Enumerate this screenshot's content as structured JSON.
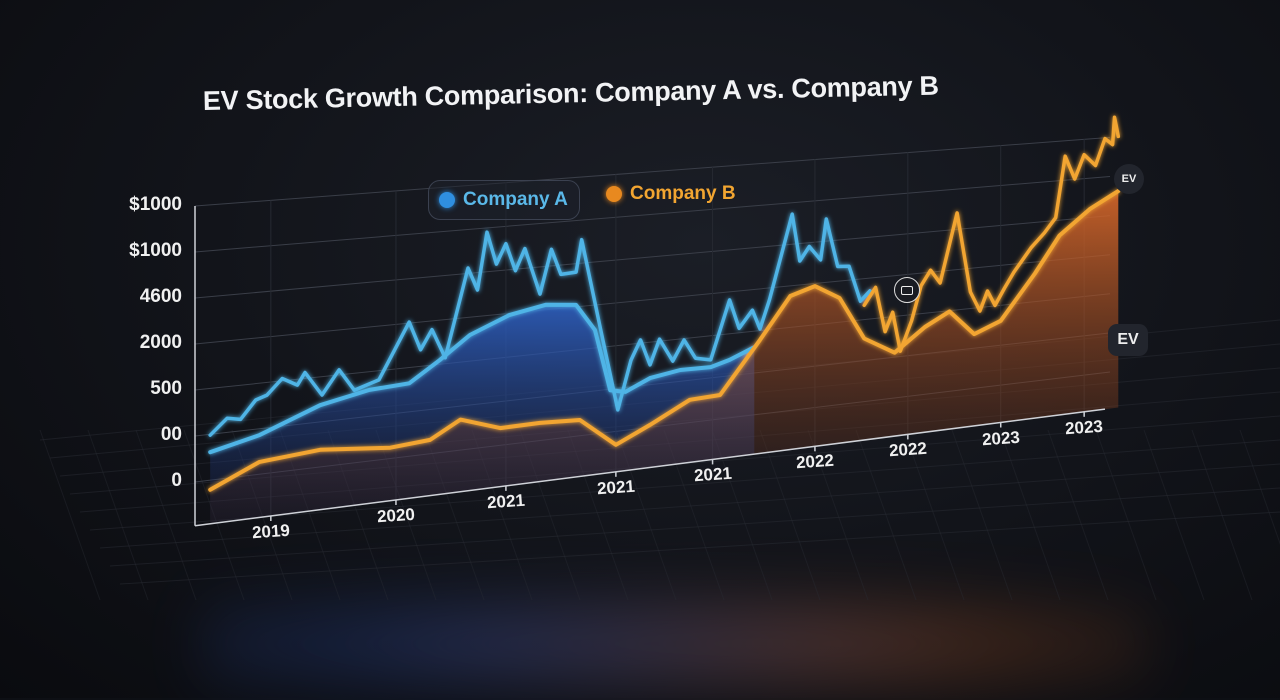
{
  "title": "EV Stock Growth Comparison: Company A vs. Company B",
  "badges": {
    "top": "EV",
    "side": "EV"
  },
  "colors": {
    "company_a": "#4fb4e6",
    "company_b": "#f2a531",
    "background": "#0d0f14"
  },
  "chart_data": {
    "type": "line",
    "title": "EV Stock Growth Comparison: Company A vs. Company B",
    "xlabel": "",
    "ylabel": "",
    "legend": {
      "placement": "top-center",
      "entries": [
        "Company A",
        "Company B"
      ]
    },
    "grid": true,
    "y_tick_labels": [
      "0",
      "00",
      "500",
      "2000",
      "4600",
      "$1000",
      "$1000"
    ],
    "y_tick_values": [
      0,
      1,
      2,
      3,
      4,
      5,
      6
    ],
    "ylim": [
      -0.95,
      6.5
    ],
    "xlim": [
      2018.8,
      2023.6
    ],
    "x_ticks": [
      {
        "label": "2019",
        "x": 2019.2
      },
      {
        "label": "2020",
        "x": 2019.86
      },
      {
        "label": "2021",
        "x": 2020.44
      },
      {
        "label": "2021",
        "x": 2021.02
      },
      {
        "label": "2021",
        "x": 2021.53
      },
      {
        "label": "2022",
        "x": 2022.07
      },
      {
        "label": "2022",
        "x": 2022.56
      },
      {
        "label": "2023",
        "x": 2023.05
      },
      {
        "label": "2023",
        "x": 2023.49
      }
    ],
    "series": [
      {
        "name": "Company A",
        "kind": "trend",
        "color": "#4fb4e6",
        "x": [
          2018.88,
          2019.14,
          2019.46,
          2019.72,
          2019.93,
          2020.09,
          2020.25,
          2020.46,
          2020.65,
          2020.81,
          2020.91,
          2020.99,
          2021.07,
          2021.2,
          2021.36,
          2021.52,
          2021.62,
          2021.75
        ],
        "y": [
          0.61,
          0.86,
          1.37,
          1.59,
          1.64,
          2.09,
          2.59,
          2.96,
          3.11,
          3.04,
          2.41,
          0.97,
          0.89,
          1.15,
          1.26,
          1.25,
          1.37,
          1.61
        ]
      },
      {
        "name": "Company A",
        "kind": "price",
        "color": "#4fb4e6",
        "x": [
          2018.88,
          2018.97,
          2019.04,
          2019.12,
          2019.18,
          2019.26,
          2019.34,
          2019.38,
          2019.47,
          2019.56,
          2019.64,
          2019.77,
          2019.93,
          2019.99,
          2020.05,
          2020.12,
          2020.24,
          2020.29,
          2020.34,
          2020.39,
          2020.44,
          2020.49,
          2020.54,
          2020.62,
          2020.68,
          2020.73,
          2020.81,
          2020.84,
          2020.94,
          2021.03,
          2021.1,
          2021.15,
          2021.2,
          2021.25,
          2021.32,
          2021.38,
          2021.44,
          2021.52,
          2021.62,
          2021.67,
          2021.74,
          2021.78,
          2021.83,
          2021.95,
          2021.99,
          2022.04,
          2022.1,
          2022.13,
          2022.19,
          2022.25,
          2022.31,
          2022.36
        ],
        "y": [
          0.98,
          1.31,
          1.25,
          1.64,
          1.72,
          2.05,
          1.87,
          2.13,
          1.59,
          2.11,
          1.62,
          1.79,
          3.02,
          2.37,
          2.8,
          2.13,
          4.12,
          3.6,
          4.9,
          4.15,
          4.6,
          3.96,
          4.45,
          3.37,
          4.38,
          3.78,
          3.8,
          4.54,
          2.4,
          0.49,
          1.62,
          2.07,
          1.46,
          2.04,
          1.49,
          1.96,
          1.5,
          1.42,
          2.8,
          2.1,
          2.5,
          2.03,
          2.7,
          4.72,
          3.57,
          3.9,
          3.55,
          4.53,
          3.35,
          3.33,
          2.45,
          2.68
        ]
      },
      {
        "name": "Company B",
        "kind": "trend",
        "color": "#f2a531",
        "x": [
          2018.88,
          2019.14,
          2019.46,
          2019.83,
          2020.04,
          2020.2,
          2020.41,
          2020.62,
          2020.83,
          2021.02,
          2021.2,
          2021.41,
          2021.57,
          2021.78,
          2021.94,
          2022.07,
          2022.2,
          2022.33,
          2022.49,
          2022.65,
          2022.78,
          2022.91,
          2023.05,
          2023.23,
          2023.36,
          2023.52,
          2023.67
        ],
        "y": [
          -0.21,
          0.27,
          0.38,
          0.24,
          0.31,
          0.69,
          0.39,
          0.4,
          0.36,
          -0.32,
          0.05,
          0.53,
          0.56,
          1.77,
          2.75,
          2.93,
          2.58,
          1.53,
          1.1,
          1.65,
          1.97,
          1.34,
          1.6,
          2.7,
          3.6,
          4.2,
          4.6
        ]
      },
      {
        "name": "Company B",
        "kind": "price",
        "color": "#f2a531",
        "x": [
          2022.33,
          2022.39,
          2022.44,
          2022.48,
          2022.52,
          2022.58,
          2022.63,
          2022.68,
          2022.73,
          2022.82,
          2022.89,
          2022.94,
          2022.98,
          2023.02,
          2023.07,
          2023.12,
          2023.21,
          2023.28,
          2023.34,
          2023.39,
          2023.44,
          2023.49,
          2023.55,
          2023.6,
          2023.64,
          2023.65,
          2023.67
        ],
        "y": [
          2.34,
          2.75,
          1.64,
          2.1,
          1.12,
          1.84,
          2.68,
          3.04,
          2.7,
          4.4,
          2.4,
          1.9,
          2.38,
          2.0,
          2.41,
          2.79,
          3.36,
          3.7,
          4.06,
          5.6,
          5.0,
          5.6,
          5.3,
          5.97,
          5.8,
          6.5,
          6.0
        ]
      }
    ]
  }
}
